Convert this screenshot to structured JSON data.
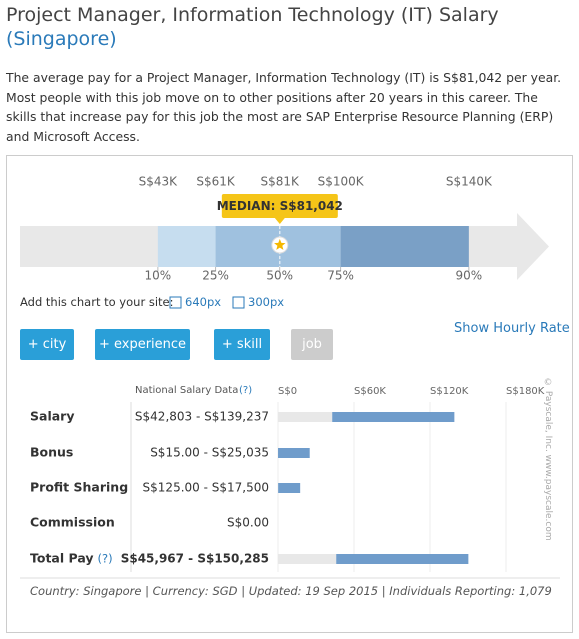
{
  "header": {
    "title": "Project Manager, Information Technology (IT) Salary",
    "location": "(Singapore)"
  },
  "description": "The average pay for a Project Manager, Information Technology (IT) is S$81,042 per year. Most people with this job move on to other positions after 20 years in this career. The skills that increase pay for this job the most are SAP Enterprise Resource Planning (ERP) and Microsoft Access.",
  "percentile_chart": {
    "xlim": [
      0,
      165000
    ],
    "salaries": [
      {
        "value": 43000,
        "label": "S$43K"
      },
      {
        "value": 61000,
        "label": "S$61K"
      },
      {
        "value": 81000,
        "label": "S$81K"
      },
      {
        "value": 100000,
        "label": "S$100K"
      },
      {
        "value": 140000,
        "label": "S$140K"
      }
    ],
    "percentiles": [
      "10%",
      "25%",
      "50%",
      "75%",
      "90%"
    ],
    "band_colors": [
      "#c6ddef",
      "#9fc1df",
      "#9fc1df",
      "#7aa0c6"
    ],
    "median": {
      "value": 81042,
      "label": "MEDIAN: S$81,042"
    }
  },
  "embed": {
    "label": "Add this chart to your site:",
    "links": [
      "640px",
      "300px"
    ]
  },
  "buttons": [
    "+ city",
    "+ experience",
    "+ skill",
    "job"
  ],
  "hourly_link": "Show Hourly Rate",
  "salary_table": {
    "header": "National Salary Data",
    "help": "(?)",
    "xlim": [
      0,
      180000
    ],
    "xticks": [
      {
        "value": 0,
        "label": "S$0"
      },
      {
        "value": 60000,
        "label": "S$60K"
      },
      {
        "value": 120000,
        "label": "S$120K"
      },
      {
        "value": 180000,
        "label": "S$180K"
      }
    ],
    "rows": [
      {
        "name": "Salary",
        "range": "S$42,803 - S$139,237",
        "low": 42803,
        "high": 139237
      },
      {
        "name": "Bonus",
        "range": "S$15.00 - S$25,035",
        "low": 15,
        "high": 25035
      },
      {
        "name": "Profit Sharing",
        "range": "S$125.00 - S$17,500",
        "low": 125,
        "high": 17500
      },
      {
        "name": "Commission",
        "range": "S$0.00",
        "low": 0,
        "high": 0
      },
      {
        "name": "Total Pay",
        "help": "(?)",
        "range": "S$45,967 - S$150,285",
        "low": 45967,
        "high": 150285
      }
    ],
    "watermark": "© Payscale, Inc.  www.payscale.com"
  },
  "footer": "Country: Singapore | Currency: SGD | Updated: 19 Sep 2015 | Individuals Reporting: 1,079"
}
